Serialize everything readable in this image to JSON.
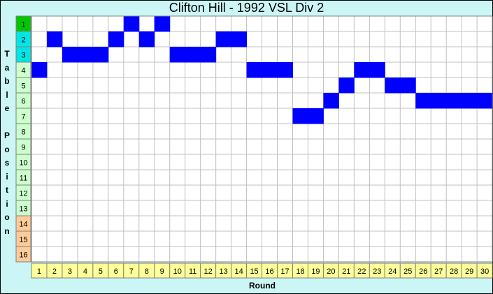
{
  "chart_data": {
    "type": "heatmap",
    "title": "Clifton Hill - 1992 VSL Div 2",
    "xlabel": "Round",
    "ylabel": "Table Position",
    "rounds": [
      1,
      2,
      3,
      4,
      5,
      6,
      7,
      8,
      9,
      10,
      11,
      12,
      13,
      14,
      15,
      16,
      17,
      18,
      19,
      20,
      21,
      22,
      23,
      24,
      25,
      26,
      27,
      28,
      29,
      30
    ],
    "positions": [
      1,
      2,
      3,
      4,
      5,
      6,
      7,
      8,
      9,
      10,
      11,
      12,
      13,
      14,
      15,
      16
    ],
    "values": [
      4,
      2,
      3,
      3,
      3,
      2,
      1,
      2,
      1,
      3,
      3,
      3,
      2,
      2,
      4,
      4,
      4,
      7,
      7,
      6,
      5,
      4,
      4,
      5,
      5,
      6,
      6,
      6,
      6,
      6
    ],
    "xlim": [
      1,
      30
    ],
    "ylim": [
      16,
      1
    ],
    "grid": true,
    "colors": {
      "background": "#ccf6f6",
      "plot_background": "#ffffff",
      "grid": "#c0c0c0",
      "marker": "#0000ff",
      "x_tick_background": "#ffff99",
      "position_1": "#00c800",
      "positions_2_3": "#00e6e6",
      "positions_4_13": "#ccffcc",
      "positions_14_16": "#ffcc99"
    }
  }
}
